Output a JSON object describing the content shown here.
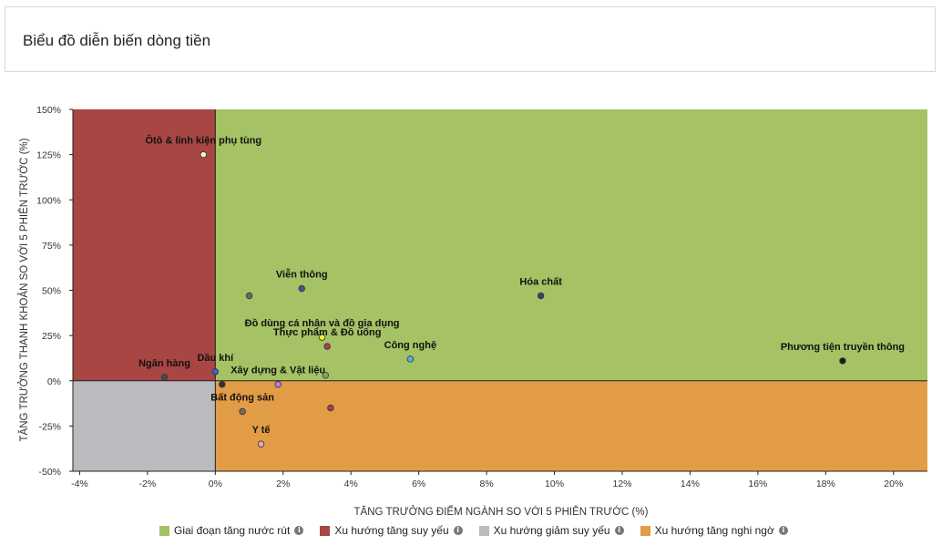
{
  "page": {
    "title": "Biểu đồ diễn biến dòng tiền"
  },
  "chart_data": {
    "type": "scatter",
    "xlabel": "TĂNG TRƯỞNG ĐIỂM NGÀNH SO VỚI 5 PHIÊN TRƯỚC (%)",
    "ylabel": "TĂNG TRƯỞNG THANH KHOẢN SO VỚI 5 PHIÊN TRƯỚC (%)",
    "xlim": [
      -4.2,
      21
    ],
    "ylim": [
      -50,
      150
    ],
    "xticks": [
      -4,
      -2,
      0,
      2,
      4,
      6,
      8,
      10,
      12,
      14,
      16,
      18,
      20
    ],
    "xtick_labels": [
      "-4%",
      "-2%",
      "0%",
      "2%",
      "4%",
      "6%",
      "8%",
      "10%",
      "12%",
      "14%",
      "16%",
      "18%",
      "20%"
    ],
    "yticks": [
      150,
      125,
      100,
      75,
      50,
      25,
      0,
      -25,
      -50
    ],
    "ytick_labels": [
      "150%",
      "125%",
      "100%",
      "75%",
      "50%",
      "25%",
      "0%",
      "-25%",
      "-50%"
    ],
    "quadrants": [
      {
        "name": "Giai đoạn tăng nước rút",
        "color": "#a5c265"
      },
      {
        "name": "Xu hướng tăng suy yếu",
        "color": "#a84643"
      },
      {
        "name": "Xu hướng giảm suy yếu",
        "color": "#babbbf"
      },
      {
        "name": "Xu hướng tăng nghi ngờ",
        "color": "#e39c46"
      }
    ],
    "points": [
      {
        "label": "Ôtô & linh kiện phụ tùng",
        "x": -0.35,
        "y": 125,
        "color": "#f5f2b8"
      },
      {
        "label": "Viễn thông",
        "x": 2.55,
        "y": 51,
        "color": "#4a4f9a"
      },
      {
        "label": "",
        "x": 1.0,
        "y": 47,
        "color": "#666b55"
      },
      {
        "label": "Hóa chất",
        "x": 9.6,
        "y": 47,
        "color": "#3c3f72"
      },
      {
        "label": "Đồ dùng cá nhân và đồ gia dụng",
        "x": 3.15,
        "y": 24,
        "color": "#f2ef2e"
      },
      {
        "label": "Thực phẩm & Đồ uống",
        "x": 3.3,
        "y": 19,
        "color": "#b23a56"
      },
      {
        "label": "Công nghệ",
        "x": 5.75,
        "y": 12,
        "color": "#5aaee8"
      },
      {
        "label": "Phương tiện truyền thông",
        "x": 18.5,
        "y": 11,
        "color": "#1c1c1c"
      },
      {
        "label": "Ngân hàng",
        "x": -1.5,
        "y": 2,
        "color": "#4a4a4a"
      },
      {
        "label": "Dầu khí",
        "x": 0.0,
        "y": 5,
        "color": "#3d5fd6"
      },
      {
        "label": "Xây dựng & Vật liệu",
        "x": 1.85,
        "y": -2,
        "color": "#b77fe0"
      },
      {
        "label": "",
        "x": 0.2,
        "y": -2,
        "color": "#333333"
      },
      {
        "label": "",
        "x": 3.25,
        "y": 3,
        "color": "#8aa35a"
      },
      {
        "label": "Bất động sản",
        "x": 0.8,
        "y": -17,
        "color": "#7a6b5c"
      },
      {
        "label": "",
        "x": 3.4,
        "y": -15,
        "color": "#a83a56"
      },
      {
        "label": "Y tế",
        "x": 1.35,
        "y": -35,
        "color": "#e2a6c4"
      }
    ]
  },
  "legend": [
    {
      "label": "Giai đoạn tăng nước rút",
      "color": "#a5c265",
      "info_icon": "info-icon"
    },
    {
      "label": "Xu hướng tăng suy yếu",
      "color": "#a84643",
      "info_icon": "info-icon"
    },
    {
      "label": "Xu hướng giảm suy yếu",
      "color": "#babbbf",
      "info_icon": "info-icon"
    },
    {
      "label": "Xu hướng tăng nghi ngờ",
      "color": "#e39c46",
      "info_icon": "info-icon"
    }
  ]
}
